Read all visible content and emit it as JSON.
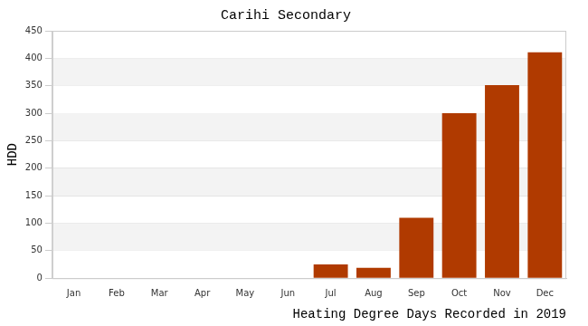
{
  "chart_data": {
    "type": "bar",
    "title": "Carihi Secondary",
    "x_label": "Heating Degree Days Recorded in 2019",
    "y_label": "HDD",
    "categories": [
      "Jan",
      "Feb",
      "Mar",
      "Apr",
      "May",
      "Jun",
      "Jul",
      "Aug",
      "Sep",
      "Oct",
      "Nov",
      "Dec"
    ],
    "values": [
      0,
      0,
      0,
      0,
      0,
      0,
      25,
      19,
      110,
      300,
      351,
      411
    ],
    "color": "#b03a00",
    "ylim": [
      0,
      450
    ],
    "yticks": [
      0,
      50,
      100,
      150,
      200,
      250,
      300,
      350,
      400,
      450
    ],
    "grid": true
  }
}
